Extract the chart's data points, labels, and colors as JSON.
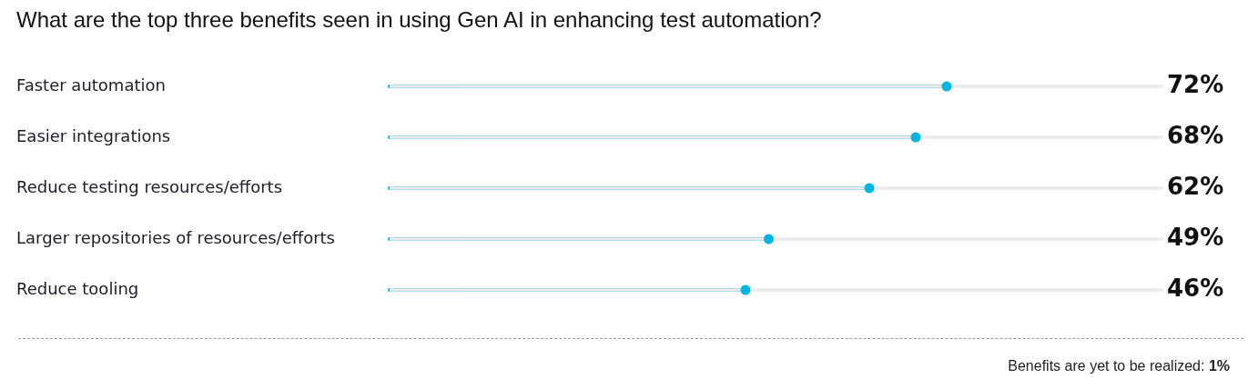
{
  "chart_data": {
    "type": "lollipop",
    "orientation": "horizontal",
    "title": "What are the top three benefits seen in using Gen AI in enhancing test automation?",
    "categories": [
      "Faster automation",
      "Easier integrations",
      "Reduce testing resources/efforts",
      "Larger repositories of resources/efforts",
      "Reduce tooling"
    ],
    "series": [
      {
        "type": "bar",
        "color": "#ebebeb",
        "values": [
          100,
          100,
          100,
          100,
          100
        ]
      },
      {
        "color": "#00b5e2",
        "values": [
          72,
          68,
          62,
          49,
          46
        ],
        "value_labels": [
          "72%",
          "68%",
          "62%",
          "49%",
          "46%"
        ]
      }
    ],
    "xlim": [
      0,
      100
    ],
    "tick_labels": "y",
    "marker": "circle",
    "annotations": [
      "Benefits are yet to be realized: 1%"
    ]
  }
}
